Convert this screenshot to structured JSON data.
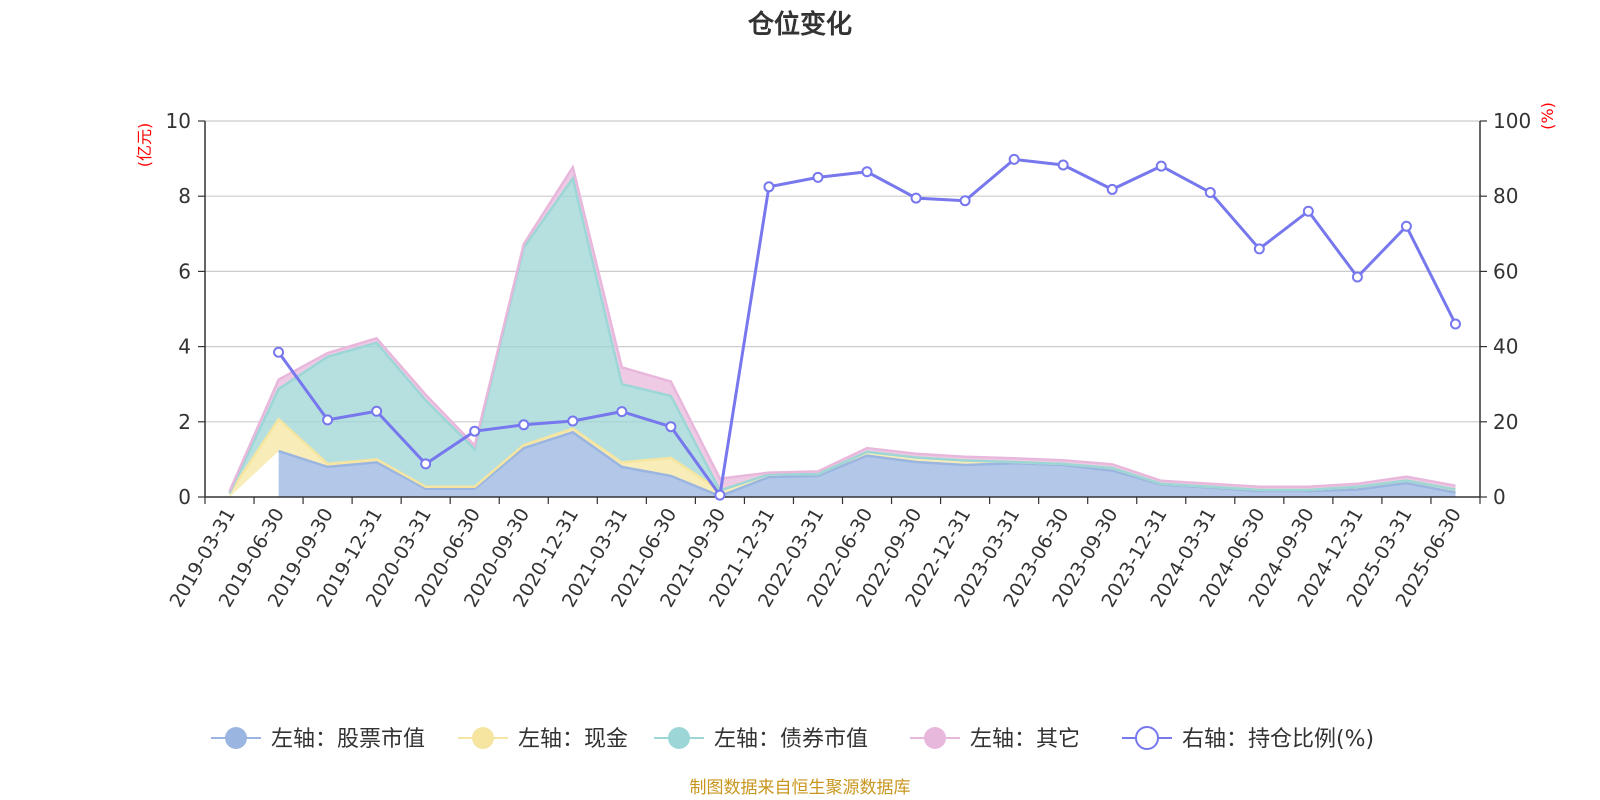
{
  "chart_data": {
    "type": "area",
    "title": "仓位变化",
    "left_unit": "(亿元)",
    "right_unit": "(%)",
    "left_ylim": [
      0,
      10
    ],
    "right_ylim": [
      0,
      100
    ],
    "left_ticks": [
      "0",
      "2",
      "4",
      "6",
      "8",
      "10"
    ],
    "right_ticks": [
      "0",
      "20",
      "40",
      "60",
      "80",
      "100"
    ],
    "grid": true,
    "legend_position": "bottom",
    "categories": [
      "2019-03-31",
      "2019-06-30",
      "2019-09-30",
      "2019-12-31",
      "2020-03-31",
      "2020-06-30",
      "2020-09-30",
      "2020-12-31",
      "2021-03-31",
      "2021-06-30",
      "2021-09-30",
      "2021-12-31",
      "2022-03-31",
      "2022-06-30",
      "2022-09-30",
      "2022-12-31",
      "2023-03-31",
      "2023-06-30",
      "2023-09-30",
      "2023-12-31",
      "2024-03-31",
      "2024-06-30",
      "2024-09-30",
      "2024-12-31",
      "2025-03-31",
      "2025-06-30"
    ],
    "series": [
      {
        "name": "左轴：股票市值",
        "axis": "left",
        "kind": "area",
        "color": "#9ab5e0",
        "values": [
          null,
          1.22,
          0.8,
          0.92,
          0.22,
          0.22,
          1.3,
          1.72,
          0.8,
          0.56,
          0.02,
          0.53,
          0.56,
          1.1,
          0.93,
          0.85,
          0.9,
          0.85,
          0.7,
          0.33,
          0.25,
          0.16,
          0.16,
          0.2,
          0.37,
          0.12
        ]
      },
      {
        "name": "左轴：现金",
        "axis": "left",
        "kind": "area",
        "color": "#f5e5a0",
        "values": [
          0.1,
          0.85,
          0.08,
          0.08,
          0.05,
          0.05,
          0.08,
          0.1,
          0.12,
          0.48,
          0.15,
          0.07,
          0.05,
          0.1,
          0.12,
          0.12,
          0.03,
          0.03,
          0.07,
          0.02,
          0.02,
          0.03,
          0.03,
          0.07,
          0.07,
          0.08
        ]
      },
      {
        "name": "左轴：债券市值",
        "axis": "left",
        "kind": "area",
        "color": "#9dd6d6",
        "values": [
          0,
          0.8,
          2.85,
          3.1,
          2.3,
          1.0,
          5.25,
          6.65,
          2.08,
          1.65,
          0,
          0,
          0,
          0,
          0,
          0,
          0,
          0,
          0,
          0,
          0,
          0,
          0,
          0,
          0,
          0
        ]
      },
      {
        "name": "左轴：其它",
        "axis": "left",
        "kind": "area",
        "color": "#e8b8dc",
        "values": [
          0.05,
          0.25,
          0.1,
          0.12,
          0.15,
          0.1,
          0.1,
          0.3,
          0.45,
          0.38,
          0.32,
          0.05,
          0.07,
          0.1,
          0.1,
          0.1,
          0.1,
          0.1,
          0.1,
          0.08,
          0.08,
          0.08,
          0.08,
          0.08,
          0.1,
          0.1
        ]
      },
      {
        "name": "右轴：持仓比例(%)",
        "axis": "right",
        "kind": "line",
        "color": "#7777ee",
        "values": [
          null,
          38.5,
          20.5,
          22.8,
          8.8,
          17.5,
          19.2,
          20.2,
          22.7,
          18.7,
          0.5,
          82.5,
          85,
          86.5,
          79.5,
          78.8,
          89.8,
          88.3,
          81.8,
          88,
          81,
          66,
          76,
          58.5,
          72,
          46
        ]
      }
    ]
  },
  "legend": [
    {
      "label": "左轴：股票市值",
      "color": "#9ab5e0",
      "style": "filled"
    },
    {
      "label": "左轴：现金",
      "color": "#f5e5a0",
      "style": "filled"
    },
    {
      "label": "左轴：债券市值",
      "color": "#9dd6d6",
      "style": "filled"
    },
    {
      "label": "左轴：其它",
      "color": "#e8b8dc",
      "style": "filled"
    },
    {
      "label": "右轴：持仓比例(%)",
      "color": "#7777ee",
      "style": "hollow"
    }
  ],
  "source": "制图数据来自恒生聚源数据库"
}
